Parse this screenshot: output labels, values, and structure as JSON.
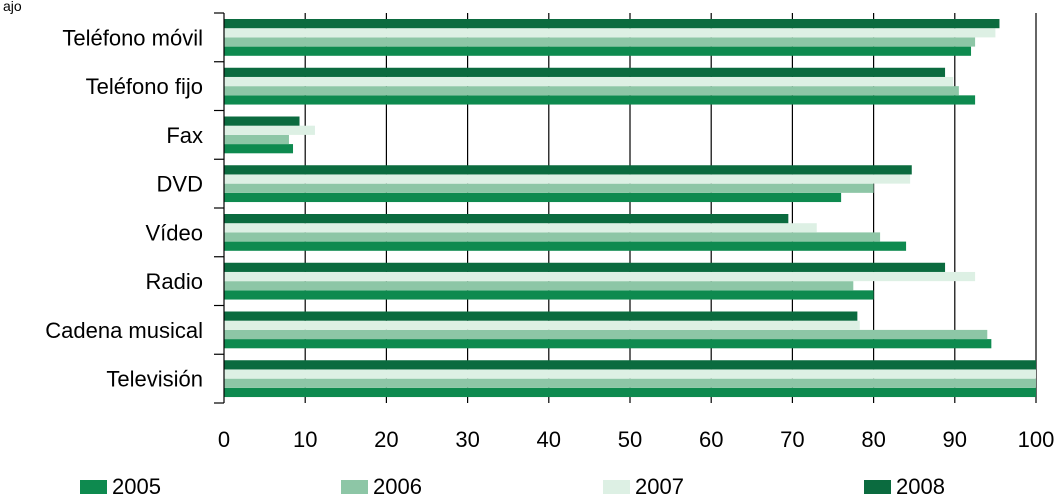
{
  "corner_text": "ajo",
  "chart_data": {
    "type": "bar",
    "orientation": "horizontal",
    "categories": [
      "Teléfono móvil",
      "Teléfono fijo",
      "Fax",
      "DVD",
      "Vídeo",
      "Radio",
      "Cadena musical",
      "Televisión"
    ],
    "series": [
      {
        "name": "2005",
        "color": "#0e8a4f",
        "values": [
          92.0,
          92.5,
          8.5,
          76.0,
          84.0,
          80.0,
          94.5,
          100.0
        ]
      },
      {
        "name": "2006",
        "color": "#8dc6a6",
        "values": [
          92.5,
          90.5,
          8.0,
          80.0,
          80.8,
          77.5,
          94.0,
          100.0
        ]
      },
      {
        "name": "2007",
        "color": "#ddf0e4",
        "values": [
          95.0,
          89.8,
          11.2,
          84.5,
          73.0,
          92.5,
          78.3,
          100.0
        ]
      },
      {
        "name": "2008",
        "color": "#0b6b3f",
        "values": [
          95.5,
          88.8,
          9.3,
          84.7,
          69.5,
          88.8,
          78.0,
          100.0
        ]
      }
    ],
    "xlim": [
      0,
      100
    ],
    "x_ticks": [
      0,
      10,
      20,
      30,
      40,
      50,
      60,
      70,
      80,
      90,
      100
    ],
    "grid": true,
    "legend_position": "bottom"
  }
}
